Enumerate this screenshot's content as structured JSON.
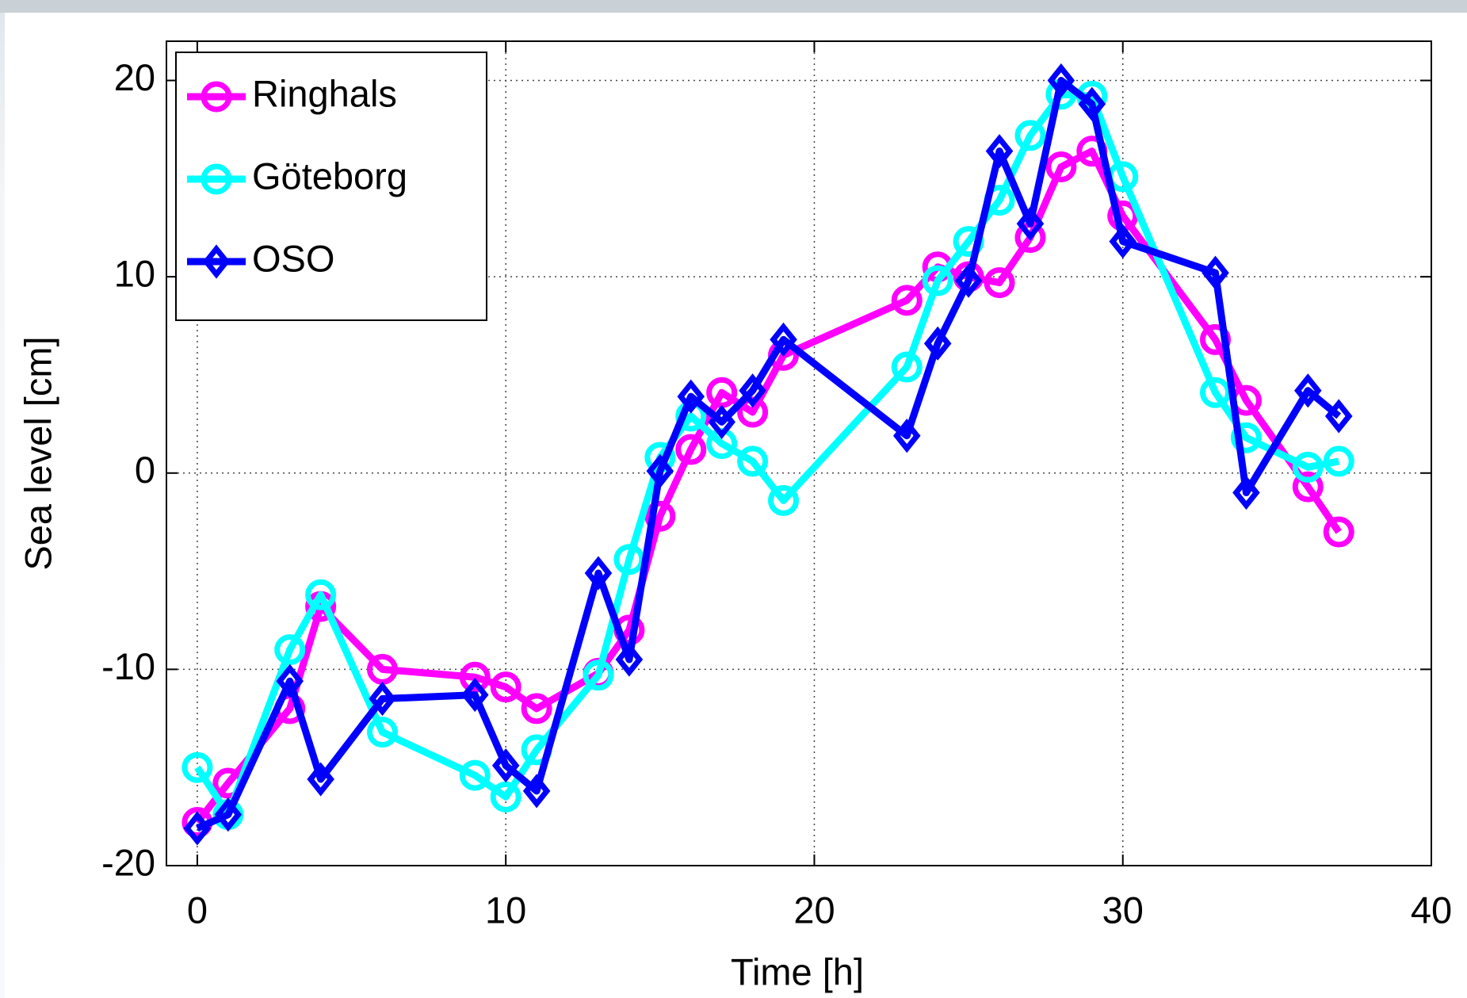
{
  "chart_data": {
    "type": "line",
    "xlabel": "Time [h]",
    "ylabel": "Sea level [cm]",
    "x": [
      0,
      1,
      3,
      4,
      6,
      9,
      10,
      11,
      13,
      14,
      15,
      16,
      17,
      18,
      19,
      23,
      24,
      25,
      26,
      27,
      28,
      29,
      30,
      33,
      34,
      36,
      37
    ],
    "series": [
      {
        "name": "Ringhals",
        "color": "#ff00ff",
        "marker": "circle",
        "values": [
          -17.8,
          -15.8,
          -12.0,
          -6.8,
          -10.0,
          -10.4,
          -10.9,
          -12.0,
          -10.2,
          -8.0,
          -2.2,
          1.2,
          4.1,
          3.1,
          6.0,
          8.8,
          10.5,
          10.0,
          9.7,
          12.0,
          15.6,
          16.4,
          13.1,
          6.8,
          3.7,
          -0.7,
          -3.0
        ]
      },
      {
        "name": "Göteborg",
        "color": "#00ffff",
        "marker": "circle",
        "values": [
          -15.0,
          -17.4,
          -9.0,
          -6.2,
          -13.2,
          -15.4,
          -16.5,
          -14.1,
          -10.3,
          -4.4,
          0.8,
          2.9,
          1.5,
          0.6,
          -1.4,
          5.4,
          9.8,
          11.8,
          13.9,
          17.2,
          19.3,
          19.2,
          15.1,
          4.1,
          1.8,
          0.3,
          0.6
        ]
      },
      {
        "name": "OSO",
        "color": "#0000ff",
        "marker": "diamond",
        "values": [
          -18.1,
          -17.4,
          -10.6,
          -15.6,
          -11.5,
          -11.3,
          -14.9,
          -16.2,
          -5.1,
          -9.5,
          0.1,
          3.9,
          2.6,
          4.2,
          6.8,
          1.9,
          6.6,
          9.8,
          16.4,
          12.7,
          20.0,
          18.8,
          11.8,
          10.2,
          -1.0,
          4.2,
          2.9
        ]
      }
    ],
    "xlim": [
      -1,
      40
    ],
    "ylim": [
      -20,
      22
    ],
    "xticks": [
      0,
      10,
      20,
      30,
      40
    ],
    "yticks": [
      -20,
      -10,
      0,
      10,
      20
    ],
    "grid": true,
    "legend": "upper-left"
  }
}
